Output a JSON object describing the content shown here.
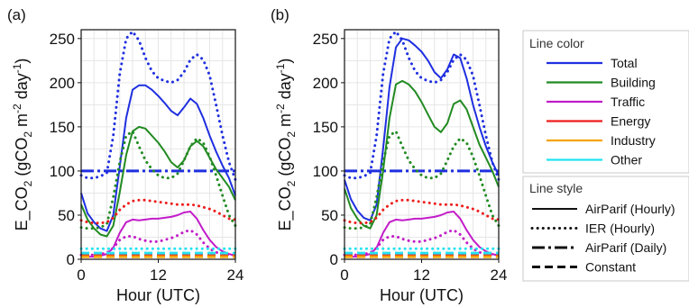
{
  "panels": [
    {
      "tag": "(a)",
      "chart_data": {
        "type": "line",
        "xlabel": "Hour (UTC)",
        "ylabel_parts": [
          "E_CO",
          "2",
          " (gCO",
          "2",
          " m",
          "-2",
          " day",
          "-1",
          ")"
        ],
        "xlim": [
          0,
          24
        ],
        "ylim": [
          0,
          260
        ],
        "xticks": [
          0,
          12,
          24
        ],
        "yticks": [
          0,
          50,
          100,
          150,
          200,
          250
        ],
        "grid": true,
        "series": [
          {
            "color": "total",
            "style": "airparif_hourly",
            "x": [
              0,
              1,
              2,
              3,
              4,
              5,
              6,
              7,
              8,
              9,
              10,
              11,
              12,
              13,
              14,
              15,
              16,
              17,
              18,
              19,
              20,
              21,
              22,
              23,
              24
            ],
            "y": [
              75,
              52,
              42,
              35,
              32,
              50,
              105,
              160,
              192,
              197,
              197,
              192,
              185,
              177,
              168,
              163,
              172,
              182,
              176,
              160,
              140,
              122,
              106,
              92,
              72
            ]
          },
          {
            "color": "total",
            "style": "ier_hourly",
            "x": [
              0,
              1,
              2,
              3,
              4,
              5,
              6,
              7,
              8,
              9,
              10,
              11,
              12,
              13,
              14,
              15,
              16,
              17,
              18,
              19,
              20,
              21,
              22,
              23,
              24
            ],
            "y": [
              95,
              92,
              92,
              94,
              98,
              140,
              210,
              250,
              258,
              248,
              228,
              213,
              205,
              202,
              200,
              203,
              212,
              226,
              232,
              226,
              208,
              175,
              140,
              110,
              90
            ]
          },
          {
            "color": "total",
            "style": "airparif_daily",
            "x": [
              0,
              24
            ],
            "y": [
              100,
              100
            ]
          },
          {
            "color": "building",
            "style": "airparif_hourly",
            "x": [
              0,
              1,
              2,
              3,
              4,
              5,
              6,
              7,
              8,
              9,
              10,
              11,
              12,
              13,
              14,
              15,
              16,
              17,
              18,
              19,
              20,
              21,
              22,
              23,
              24
            ],
            "y": [
              62,
              45,
              35,
              28,
              26,
              38,
              76,
              118,
              145,
              150,
              148,
              140,
              132,
              122,
              110,
              104,
              112,
              128,
              134,
              128,
              115,
              102,
              92,
              82,
              67
            ]
          },
          {
            "color": "building",
            "style": "ier_hourly",
            "x": [
              0,
              1,
              2,
              3,
              4,
              5,
              6,
              7,
              8,
              9,
              10,
              11,
              12,
              13,
              14,
              15,
              16,
              17,
              18,
              19,
              20,
              21,
              22,
              23,
              24
            ],
            "y": [
              36,
              35,
              35,
              36,
              40,
              70,
              110,
              140,
              145,
              128,
              112,
              102,
              95,
              92,
              92,
              97,
              112,
              128,
              137,
              132,
              116,
              95,
              72,
              50,
              38
            ]
          },
          {
            "color": "traffic",
            "style": "airparif_hourly",
            "x": [
              0,
              1,
              2,
              3,
              4,
              5,
              6,
              7,
              8,
              9,
              10,
              11,
              12,
              13,
              14,
              15,
              16,
              17,
              18,
              19,
              20,
              21,
              22,
              23,
              24
            ],
            "y": [
              3,
              3,
              3,
              4,
              6,
              13,
              30,
              42,
              45,
              44,
              45,
              46,
              46,
              47,
              48,
              50,
              53,
              54,
              46,
              33,
              22,
              14,
              9,
              6,
              4
            ]
          },
          {
            "color": "traffic",
            "style": "ier_hourly",
            "x": [
              0,
              1,
              2,
              3,
              4,
              5,
              6,
              7,
              8,
              9,
              10,
              11,
              12,
              13,
              14,
              15,
              16,
              17,
              18,
              19,
              20,
              21,
              22,
              23,
              24
            ],
            "y": [
              5,
              5,
              5,
              6,
              7,
              13,
              22,
              26,
              26,
              23,
              21,
              20,
              20,
              22,
              24,
              27,
              31,
              33,
              28,
              19,
              12,
              8,
              6,
              5,
              5
            ]
          },
          {
            "color": "energy",
            "style": "ier_hourly",
            "x": [
              0,
              1,
              2,
              3,
              4,
              5,
              6,
              7,
              8,
              9,
              10,
              11,
              12,
              13,
              14,
              15,
              16,
              17,
              18,
              19,
              20,
              21,
              22,
              23,
              24
            ],
            "y": [
              44,
              42,
              41,
              41,
              42,
              47,
              56,
              62,
              66,
              67,
              67,
              66,
              65,
              64,
              63,
              62,
              62,
              62,
              61,
              59,
              57,
              54,
              50,
              46,
              45
            ]
          },
          {
            "color": "energy",
            "style": "constant",
            "x": [
              0,
              24
            ],
            "y": [
              5,
              5
            ]
          },
          {
            "color": "industry",
            "style": "constant",
            "x": [
              0,
              24
            ],
            "y": [
              3,
              3
            ]
          },
          {
            "color": "other",
            "style": "ier_hourly",
            "x": [
              0,
              24
            ],
            "y": [
              12,
              12
            ]
          },
          {
            "color": "other",
            "style": "constant",
            "x": [
              0,
              24
            ],
            "y": [
              7,
              7
            ]
          }
        ]
      }
    },
    {
      "tag": "(b)",
      "chart_data": {
        "type": "line",
        "xlabel": "Hour (UTC)",
        "ylabel_parts": [
          "E_CO",
          "2",
          " (gCO",
          "2",
          " m",
          "-2",
          " day",
          "-1",
          ")"
        ],
        "xlim": [
          0,
          24
        ],
        "ylim": [
          0,
          260
        ],
        "xticks": [
          0,
          12,
          24
        ],
        "yticks": [
          0,
          50,
          100,
          150,
          200,
          250
        ],
        "grid": true,
        "series": [
          {
            "color": "total",
            "style": "airparif_hourly",
            "x": [
              0,
              1,
              2,
              3,
              4,
              5,
              6,
              7,
              8,
              9,
              10,
              11,
              12,
              13,
              14,
              15,
              16,
              17,
              18,
              19,
              20,
              21,
              22,
              23,
              24
            ],
            "y": [
              90,
              68,
              55,
              47,
              44,
              62,
              125,
              195,
              240,
              250,
              248,
              242,
              235,
              225,
              212,
              205,
              215,
              232,
              228,
              205,
              175,
              150,
              128,
              110,
              95
            ]
          },
          {
            "color": "total",
            "style": "ier_hourly",
            "x": [
              0,
              1,
              2,
              3,
              4,
              5,
              6,
              7,
              8,
              9,
              10,
              11,
              12,
              13,
              14,
              15,
              16,
              17,
              18,
              19,
              20,
              21,
              22,
              23,
              24
            ],
            "y": [
              95,
              92,
              92,
              94,
              98,
              140,
              210,
              250,
              258,
              248,
              228,
              213,
              205,
              202,
              200,
              203,
              212,
              226,
              232,
              226,
              208,
              175,
              140,
              110,
              90
            ]
          },
          {
            "color": "total",
            "style": "airparif_daily",
            "x": [
              0,
              24
            ],
            "y": [
              100,
              100
            ]
          },
          {
            "color": "building",
            "style": "airparif_hourly",
            "x": [
              0,
              1,
              2,
              3,
              4,
              5,
              6,
              7,
              8,
              9,
              10,
              11,
              12,
              13,
              14,
              15,
              16,
              17,
              18,
              19,
              20,
              21,
              22,
              23,
              24
            ],
            "y": [
              80,
              58,
              46,
              38,
              35,
              50,
              100,
              160,
              198,
              202,
              198,
              190,
              178,
              164,
              150,
              144,
              154,
              176,
              180,
              170,
              150,
              130,
              115,
              100,
              82
            ]
          },
          {
            "color": "building",
            "style": "ier_hourly",
            "x": [
              0,
              1,
              2,
              3,
              4,
              5,
              6,
              7,
              8,
              9,
              10,
              11,
              12,
              13,
              14,
              15,
              16,
              17,
              18,
              19,
              20,
              21,
              22,
              23,
              24
            ],
            "y": [
              36,
              35,
              35,
              36,
              40,
              70,
              110,
              140,
              145,
              128,
              112,
              102,
              95,
              92,
              92,
              97,
              112,
              128,
              137,
              132,
              116,
              95,
              72,
              50,
              38
            ]
          },
          {
            "color": "traffic",
            "style": "airparif_hourly",
            "x": [
              0,
              1,
              2,
              3,
              4,
              5,
              6,
              7,
              8,
              9,
              10,
              11,
              12,
              13,
              14,
              15,
              16,
              17,
              18,
              19,
              20,
              21,
              22,
              23,
              24
            ],
            "y": [
              3,
              3,
              3,
              4,
              6,
              13,
              30,
              42,
              45,
              44,
              45,
              46,
              46,
              47,
              48,
              50,
              53,
              54,
              46,
              33,
              22,
              14,
              9,
              6,
              4
            ]
          },
          {
            "color": "traffic",
            "style": "ier_hourly",
            "x": [
              0,
              1,
              2,
              3,
              4,
              5,
              6,
              7,
              8,
              9,
              10,
              11,
              12,
              13,
              14,
              15,
              16,
              17,
              18,
              19,
              20,
              21,
              22,
              23,
              24
            ],
            "y": [
              5,
              5,
              5,
              6,
              7,
              13,
              22,
              26,
              26,
              23,
              21,
              20,
              20,
              22,
              24,
              27,
              31,
              33,
              28,
              19,
              12,
              8,
              6,
              5,
              5
            ]
          },
          {
            "color": "energy",
            "style": "ier_hourly",
            "x": [
              0,
              1,
              2,
              3,
              4,
              5,
              6,
              7,
              8,
              9,
              10,
              11,
              12,
              13,
              14,
              15,
              16,
              17,
              18,
              19,
              20,
              21,
              22,
              23,
              24
            ],
            "y": [
              44,
              42,
              41,
              41,
              42,
              47,
              56,
              62,
              66,
              67,
              67,
              66,
              65,
              64,
              63,
              62,
              62,
              62,
              61,
              59,
              57,
              54,
              50,
              46,
              45
            ]
          },
          {
            "color": "energy",
            "style": "constant",
            "x": [
              0,
              24
            ],
            "y": [
              5,
              5
            ]
          },
          {
            "color": "industry",
            "style": "constant",
            "x": [
              0,
              24
            ],
            "y": [
              3,
              3
            ]
          },
          {
            "color": "other",
            "style": "ier_hourly",
            "x": [
              0,
              24
            ],
            "y": [
              12,
              12
            ]
          },
          {
            "color": "other",
            "style": "constant",
            "x": [
              0,
              24
            ],
            "y": [
              7,
              7
            ]
          }
        ]
      }
    }
  ],
  "legend": {
    "color_title": "Line color",
    "colors": [
      {
        "key": "total",
        "label": "Total",
        "hex": "#1f2fe0"
      },
      {
        "key": "building",
        "label": "Building",
        "hex": "#228b22"
      },
      {
        "key": "traffic",
        "label": "Traffic",
        "hex": "#c21cc9"
      },
      {
        "key": "energy",
        "label": "Energy",
        "hex": "#ee1c1c"
      },
      {
        "key": "industry",
        "label": "Industry",
        "hex": "#f5a300"
      },
      {
        "key": "other",
        "label": "Other",
        "hex": "#22e3f0"
      }
    ],
    "style_title": "Line style",
    "styles": [
      {
        "key": "airparif_hourly",
        "label": "AirParif (Hourly)"
      },
      {
        "key": "ier_hourly",
        "label": "IER (Hourly)"
      },
      {
        "key": "airparif_daily",
        "label": "AirParif (Daily)"
      },
      {
        "key": "constant",
        "label": "Constant"
      }
    ]
  }
}
